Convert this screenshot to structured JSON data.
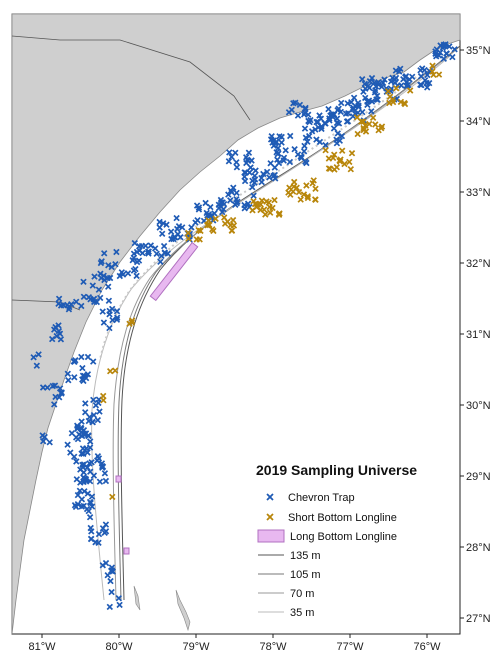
{
  "legend": {
    "title": "2019 Sampling Universe",
    "items": [
      {
        "label": "Chevron Trap",
        "type": "cross",
        "color": "#1f5bb5"
      },
      {
        "label": "Short Bottom Longline",
        "type": "cross",
        "color": "#b8860b"
      },
      {
        "label": "Long Bottom Longline",
        "type": "box",
        "color": "#e8b8f0",
        "stroke": "#b070c0"
      },
      {
        "label": "135 m",
        "type": "line",
        "color": "#555555"
      },
      {
        "label": "105 m",
        "type": "line",
        "color": "#777777"
      },
      {
        "label": "70 m",
        "type": "line",
        "color": "#999999"
      },
      {
        "label": "35 m",
        "type": "line",
        "color": "#bbbbbb"
      }
    ]
  },
  "x_ticks": [
    "81°W",
    "80°W",
    "79°W",
    "78°W",
    "77°W",
    "76°W"
  ],
  "y_ticks": [
    "35°N",
    "34°N",
    "33°N",
    "32°N",
    "31°N",
    "30°N",
    "29°N",
    "28°N",
    "27°N"
  ],
  "colors": {
    "land": "#cfcfcf",
    "water": "#ffffff",
    "chevron": "#1f5bb5",
    "longline": "#b8860b",
    "long_longline_fill": "#e8b8f0",
    "long_longline_stroke": "#b070c0"
  }
}
